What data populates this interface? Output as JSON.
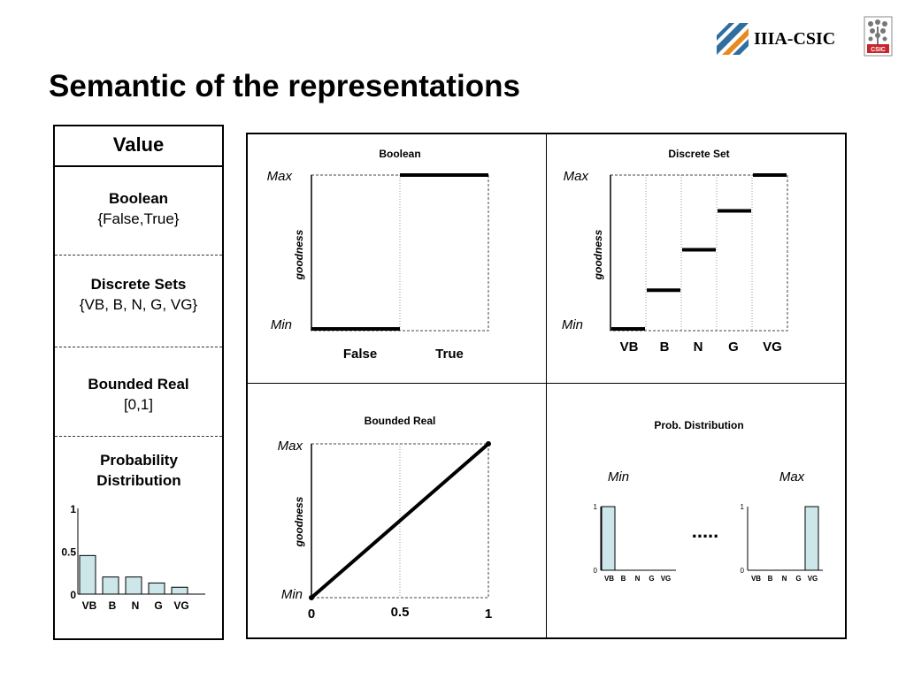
{
  "header": {
    "logo_text": "IIIA-CSIC",
    "csic_badge": "CSIC",
    "title": "Semantic of the representations"
  },
  "value_panel": {
    "heading": "Value",
    "sections": [
      {
        "name": "Boolean",
        "values": "{False,True}"
      },
      {
        "name": "Discrete Sets",
        "values": "{VB, B, N, G, VG}"
      },
      {
        "name": "Bounded Real",
        "values": "[0,1]"
      },
      {
        "name": "Probability Distribution",
        "values": ""
      }
    ],
    "mini_chart": {
      "y_ticks": [
        "1",
        "0.5",
        "0"
      ],
      "categories": [
        "VB",
        "B",
        "N",
        "G",
        "VG"
      ],
      "values": [
        0.45,
        0.2,
        0.2,
        0.13,
        0.08
      ],
      "bar_color": "#cce6ea"
    }
  },
  "chart_data": [
    {
      "type": "line",
      "title": "Boolean",
      "ylabel": "goodness",
      "y_ticks": [
        "Max",
        "Min"
      ],
      "categories": [
        "False",
        "True"
      ],
      "values": [
        0,
        1
      ]
    },
    {
      "type": "line",
      "title": "Discrete Set",
      "ylabel": "goodness",
      "y_ticks": [
        "Max",
        "Min"
      ],
      "categories": [
        "VB",
        "B",
        "N",
        "G",
        "VG"
      ],
      "values": [
        0,
        0.26,
        0.52,
        0.77,
        1
      ]
    },
    {
      "type": "line",
      "title": "Bounded Real",
      "ylabel": "goodness",
      "y_ticks": [
        "Max",
        "Min"
      ],
      "x_ticks": [
        "0",
        "0.5",
        "1"
      ],
      "x": [
        0,
        1
      ],
      "y": [
        0,
        1
      ]
    },
    {
      "type": "bar",
      "title": "Prob. Distribution",
      "ellipsis": ".....",
      "panels": [
        {
          "label": "Min",
          "y_ticks": [
            "1",
            "0"
          ],
          "categories": [
            "VB",
            "B",
            "N",
            "G",
            "VG"
          ],
          "values": [
            1,
            0,
            0,
            0,
            0
          ]
        },
        {
          "label": "Max",
          "y_ticks": [
            "1",
            "0"
          ],
          "categories": [
            "VB",
            "B",
            "N",
            "G",
            "VG"
          ],
          "values": [
            0,
            0,
            0,
            0,
            1
          ]
        }
      ],
      "bar_color": "#cce6ea"
    }
  ]
}
